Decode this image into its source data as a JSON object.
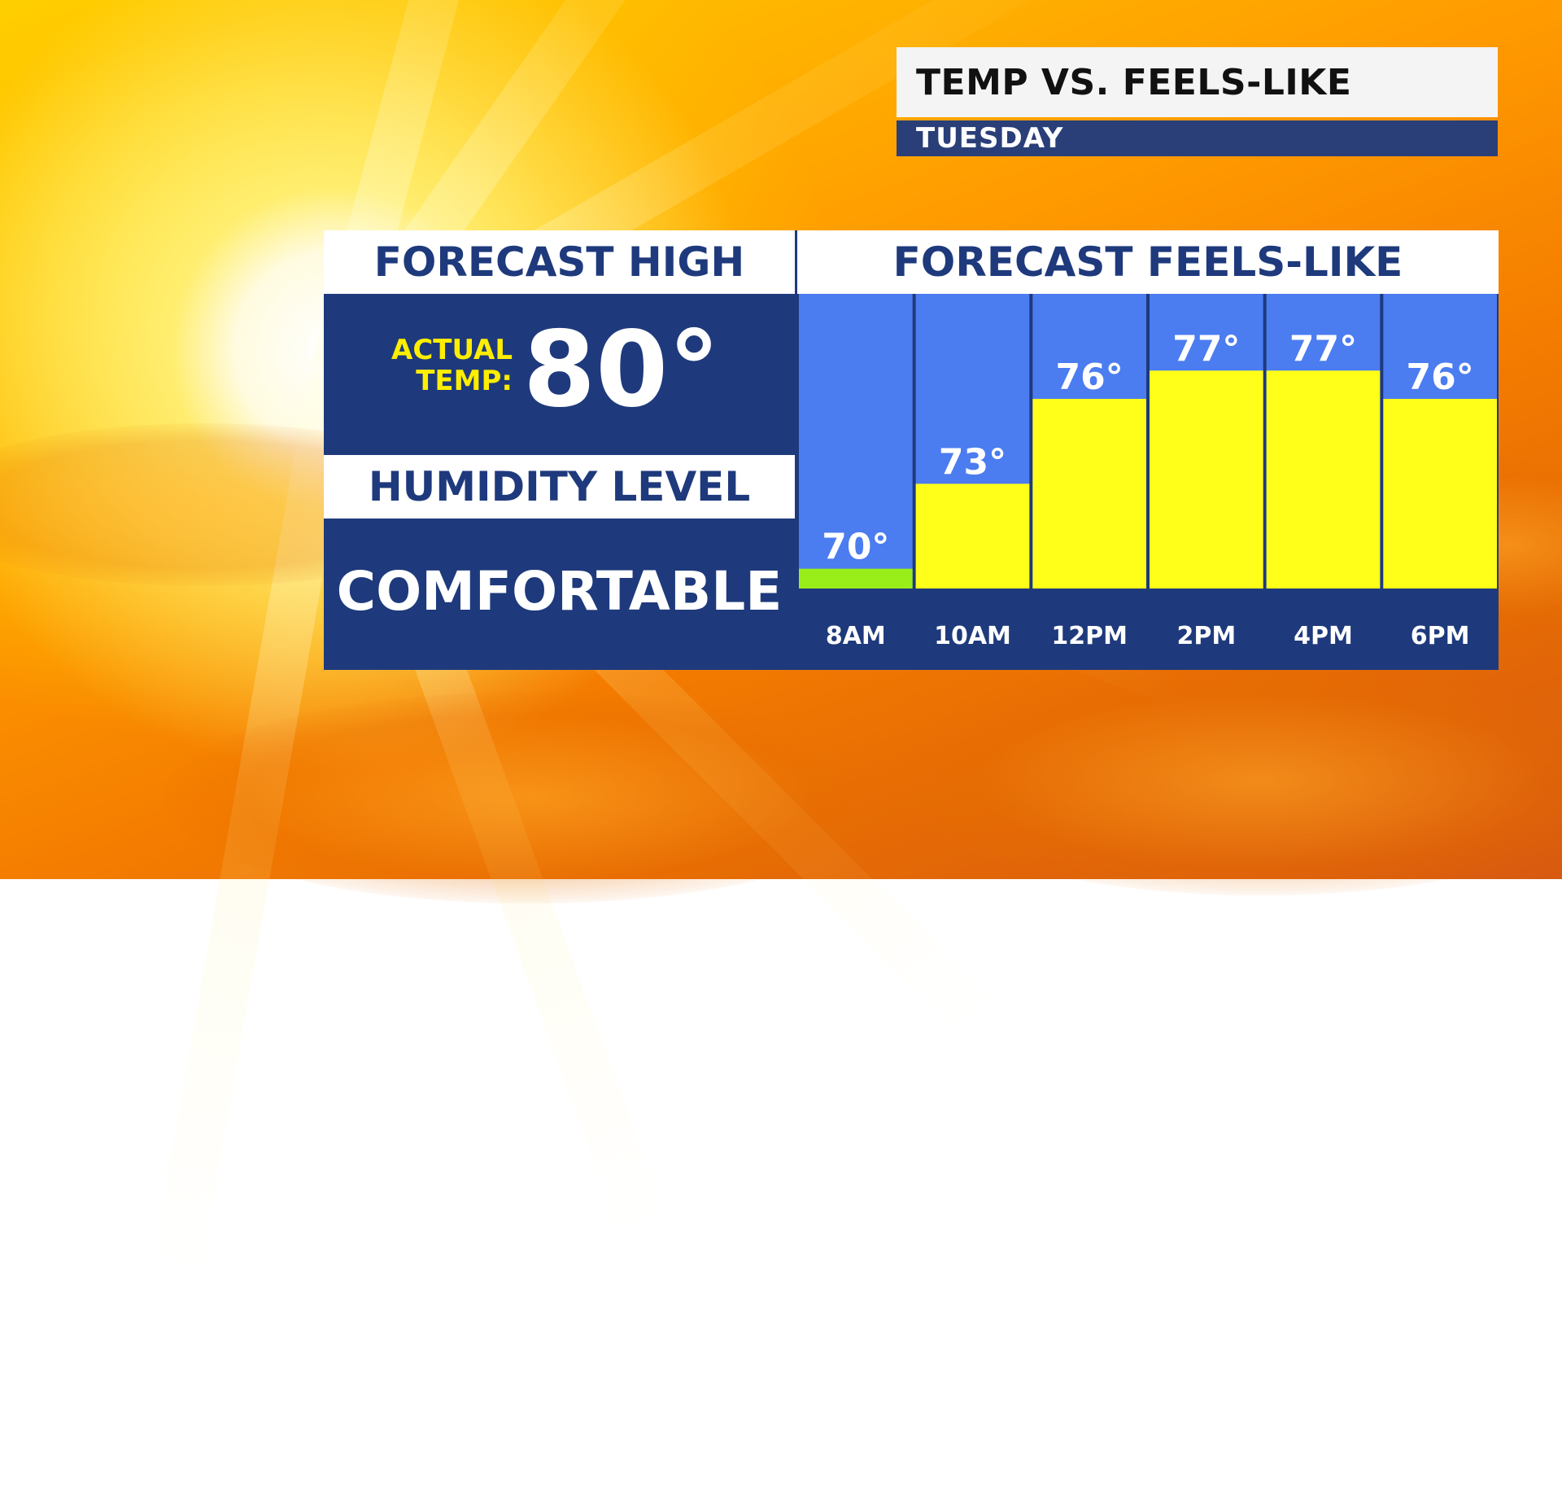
{
  "header": {
    "title": "TEMP VS. FEELS-LIKE",
    "subtitle": "TUESDAY"
  },
  "left_panel": {
    "high_heading": "FORECAST HIGH",
    "actual_label_line1": "ACTUAL",
    "actual_label_line2": "TEMP:",
    "high_value": "80°",
    "humidity_heading": "HUMIDITY LEVEL",
    "humidity_value": "COMFORTABLE"
  },
  "right_panel": {
    "heading": "FORECAST FEELS-LIKE"
  },
  "colors": {
    "navy": "#1e3a7c",
    "chart_bg": "#4b7cf0",
    "bar_yellow": "#ffff1a",
    "bar_green": "#99ee1a",
    "accent_yellow": "#ffee00"
  },
  "chart_data": {
    "type": "bar",
    "title": "FORECAST FEELS-LIKE",
    "categories": [
      "8AM",
      "10AM",
      "12PM",
      "2PM",
      "4PM",
      "6PM"
    ],
    "values": [
      70,
      73,
      76,
      77,
      77,
      76
    ],
    "value_labels": [
      "70°",
      "73°",
      "76°",
      "77°",
      "77°",
      "76°"
    ],
    "bar_colors": [
      "#99ee1a",
      "#ffff1a",
      "#ffff1a",
      "#ffff1a",
      "#ffff1a",
      "#ffff1a"
    ],
    "unit": "°",
    "ylim": [
      69.3,
      78.1
    ],
    "grid": false,
    "legend": "none"
  }
}
